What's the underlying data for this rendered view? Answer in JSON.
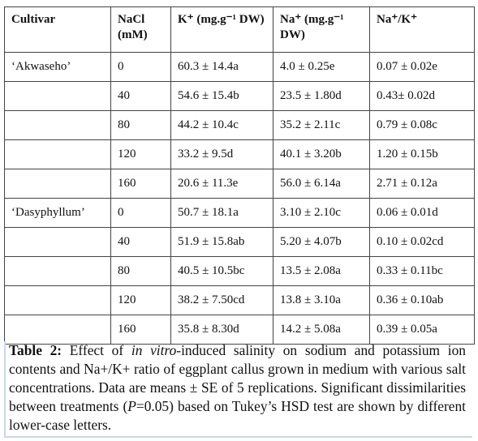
{
  "table": {
    "header": [
      "Cultivar",
      "NaCl (mM)",
      "K⁺ (mg.g⁻¹ DW)",
      "Na⁺ (mg.g⁻¹ DW)",
      "Na⁺/K⁺"
    ],
    "groups": [
      {
        "cultivar": "‘Akwaseho’",
        "rows": [
          [
            "0",
            "60.3 ± 14.4a",
            "4.0 ± 0.25e",
            "0.07 ± 0.02e"
          ],
          [
            "40",
            "54.6 ± 15.4b",
            "23.5 ± 1.80d",
            "0.43± 0.02d"
          ],
          [
            "80",
            "44.2 ± 10.4c",
            "35.2 ± 2.11c",
            "0.79 ± 0.08c"
          ],
          [
            "120",
            "33.2 ± 9.5d",
            "40.1 ± 3.20b",
            "1.20 ± 0.15b"
          ],
          [
            "160",
            "20.6 ± 11.3e",
            "56.0 ± 6.14a",
            "2.71 ± 0.12a"
          ]
        ]
      },
      {
        "cultivar": "‘Dasyphyllum’",
        "rows": [
          [
            "0",
            "50.7 ± 18.1a",
            "3.10 ± 2.10c",
            "0.06 ± 0.01d"
          ],
          [
            "40",
            "51.9 ± 15.8ab",
            "5.20 ± 4.07b",
            "0.10 ± 0.02cd"
          ],
          [
            "80",
            "40.5 ± 10.5bc",
            "13.5 ± 2.08a",
            "0.33 ± 0.11bc"
          ],
          [
            "120",
            "38.2 ± 7.50cd",
            "13.8 ± 3.10a",
            "0.36 ± 0.10ab"
          ],
          [
            "160",
            "35.8 ± 8.30d",
            "14.2 ± 5.08a",
            "0.39 ± 0.05a"
          ]
        ]
      }
    ]
  },
  "caption": {
    "label": "Table 2:",
    "parts": [
      {
        "text": " Effect of "
      },
      {
        "text": "in vitro",
        "italic": true
      },
      {
        "text": "-induced salinity on sodium and potassium ion contents and Na+/K+ ratio of eggplant callus grown in medium with various salt concentrations. Data are means ± SE of 5 replications. Significant dissimilarities between treatments ("
      },
      {
        "text": "P",
        "italic": true
      },
      {
        "text": "=0.05) based on Tukey’s HSD test are shown by different lower-case letters."
      }
    ]
  }
}
